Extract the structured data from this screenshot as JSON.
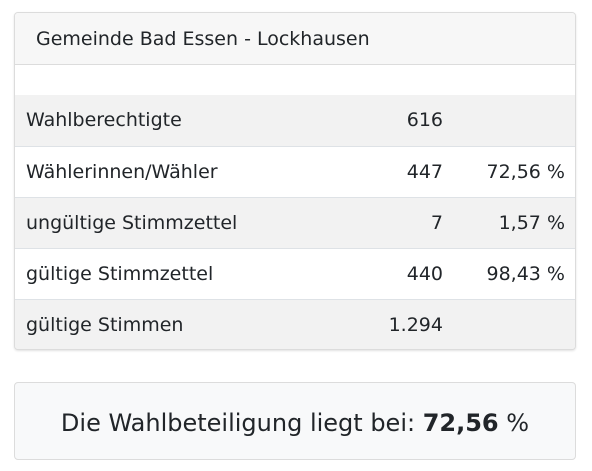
{
  "card": {
    "title": "Gemeinde Bad Essen - Lockhausen"
  },
  "rows": [
    {
      "label": "Wahlberechtigte",
      "value": "616",
      "percent": ""
    },
    {
      "label": "Wählerinnen/Wähler",
      "value": "447",
      "percent": "72,56 %"
    },
    {
      "label": "ungültige Stimmzettel",
      "value": "7",
      "percent": "1,57 %"
    },
    {
      "label": "gültige Stimmzettel",
      "value": "440",
      "percent": "98,43 %"
    },
    {
      "label": "gültige Stimmen",
      "value": "1.294",
      "percent": ""
    }
  ],
  "turnout": {
    "prefix": "Die Wahlbeteiligung liegt bei: ",
    "value": "72,56",
    "suffix": " %"
  }
}
